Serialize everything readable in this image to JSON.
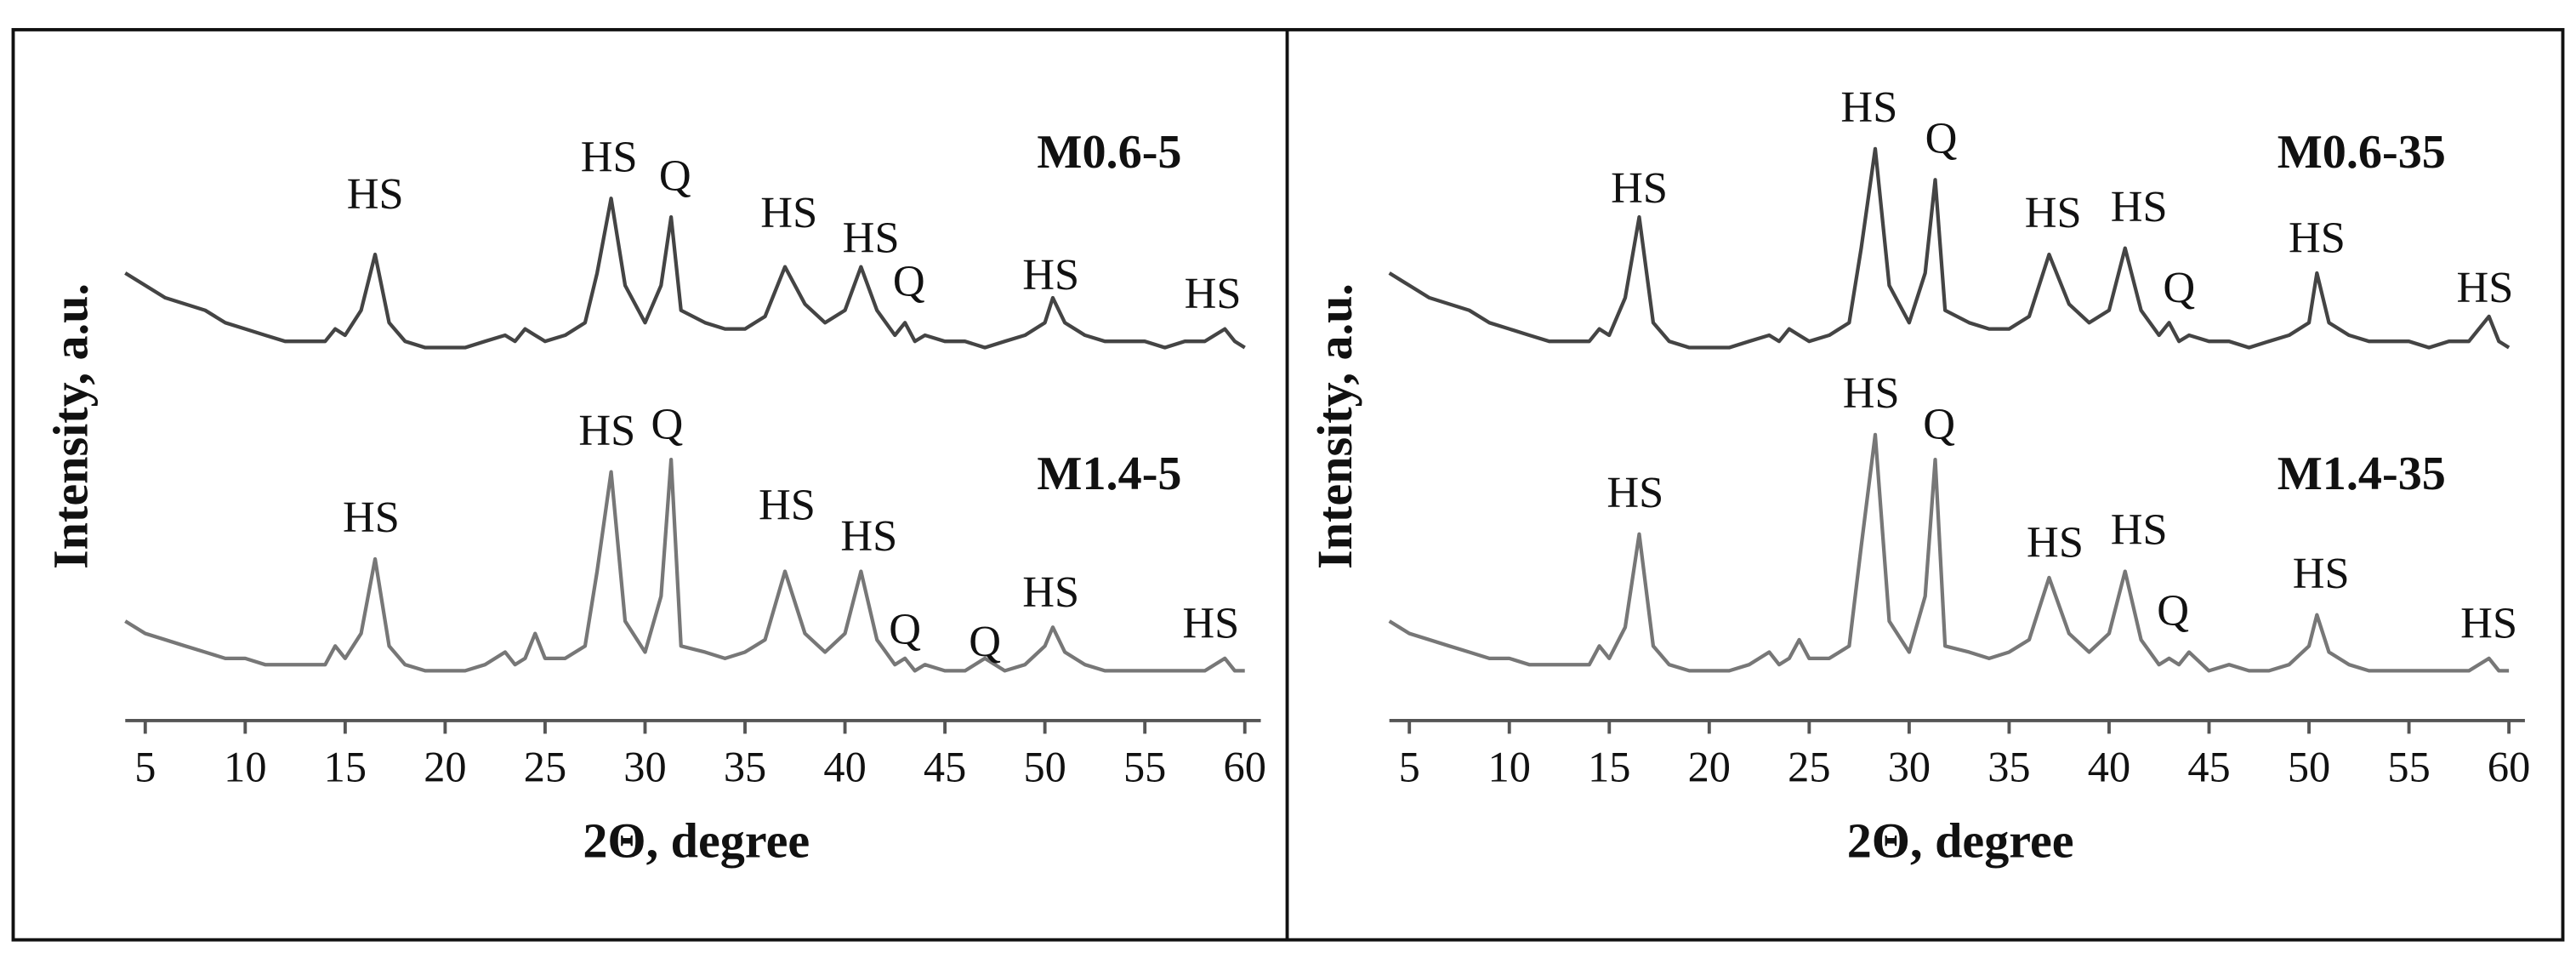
{
  "chart_data": [
    {
      "type": "line",
      "x_label": "2Θ, degree",
      "y_label": "Intensity, a.u.",
      "x": [
        4,
        5,
        6,
        7,
        8,
        9,
        10,
        11,
        12,
        13,
        14,
        14.5,
        15,
        15.8,
        16.5,
        17.2,
        18,
        19,
        20,
        21,
        22,
        23,
        23.5,
        24,
        24.5,
        25,
        26,
        27,
        27.6,
        28.3,
        29,
        30,
        30.8,
        31.3,
        31.8,
        33,
        34,
        35,
        36,
        37,
        38,
        39,
        40,
        40.8,
        41.6,
        42.5,
        43,
        43.5,
        44,
        45,
        46,
        47,
        48,
        49,
        50,
        50.4,
        51,
        52,
        53,
        54,
        55,
        56,
        57,
        58,
        59,
        59.5,
        60
      ],
      "xlim": [
        4,
        60.8
      ],
      "ylim": [
        0,
        100
      ],
      "xticks": [
        5,
        10,
        15,
        20,
        25,
        30,
        35,
        40,
        45,
        50,
        55,
        60
      ],
      "series": [
        {
          "name": "M0.6-5",
          "color": "#444444",
          "values": [
            72,
            70,
            68,
            67,
            66,
            64,
            63,
            62,
            61,
            61,
            61,
            63,
            62,
            66,
            75,
            64,
            61,
            60,
            60,
            60,
            61,
            62,
            61,
            63,
            62,
            61,
            62,
            64,
            72,
            84,
            70,
            64,
            70,
            81,
            66,
            64,
            63,
            63,
            65,
            73,
            67,
            64,
            66,
            73,
            66,
            62,
            64,
            61,
            62,
            61,
            61,
            60,
            61,
            62,
            64,
            68,
            64,
            62,
            61,
            61,
            61,
            60,
            61,
            61,
            63,
            61,
            60
          ]
        },
        {
          "name": "M1.4-5",
          "color": "#777777",
          "values": [
            16,
            14,
            13,
            12,
            11,
            10,
            10,
            9,
            9,
            9,
            9,
            12,
            10,
            14,
            26,
            12,
            9,
            8,
            8,
            8,
            9,
            11,
            9,
            10,
            14,
            10,
            10,
            12,
            24,
            40,
            16,
            11,
            20,
            42,
            12,
            11,
            10,
            11,
            13,
            24,
            14,
            11,
            14,
            24,
            13,
            9,
            10,
            8,
            9,
            8,
            8,
            10,
            8,
            9,
            12,
            15,
            11,
            9,
            8,
            8,
            8,
            8,
            8,
            8,
            10,
            8,
            8
          ]
        }
      ],
      "annotations": [
        {
          "text": "HS",
          "x": 16.5,
          "y": 84
        },
        {
          "text": "HS",
          "x": 28.2,
          "y": 90
        },
        {
          "text": "Q",
          "x": 31.5,
          "y": 87
        },
        {
          "text": "HS",
          "x": 37.2,
          "y": 81
        },
        {
          "text": "HS",
          "x": 41.3,
          "y": 77
        },
        {
          "text": "Q",
          "x": 43.2,
          "y": 70
        },
        {
          "text": "HS",
          "x": 50.3,
          "y": 71
        },
        {
          "text": "HS",
          "x": 58.4,
          "y": 68
        },
        {
          "text": "HS",
          "x": 16.3,
          "y": 32
        },
        {
          "text": "HS",
          "x": 28.1,
          "y": 46
        },
        {
          "text": "Q",
          "x": 31.1,
          "y": 47
        },
        {
          "text": "HS",
          "x": 37.1,
          "y": 34
        },
        {
          "text": "HS",
          "x": 41.2,
          "y": 29
        },
        {
          "text": "Q",
          "x": 43,
          "y": 14
        },
        {
          "text": "Q",
          "x": 47,
          "y": 12
        },
        {
          "text": "HS",
          "x": 50.3,
          "y": 20
        },
        {
          "text": "HS",
          "x": 58.3,
          "y": 15
        }
      ]
    },
    {
      "type": "line",
      "x_label": "2Θ, degree",
      "y_label": "Intensity, a.u.",
      "x": [
        4,
        5,
        6,
        7,
        8,
        9,
        10,
        11,
        12,
        13,
        14,
        14.5,
        15,
        15.8,
        16.5,
        17.2,
        18,
        19,
        20,
        21,
        22,
        23,
        23.5,
        24,
        24.5,
        25,
        26,
        27,
        27.6,
        28.3,
        29,
        30,
        30.8,
        31.3,
        31.8,
        33,
        34,
        35,
        36,
        37,
        38,
        39,
        40,
        40.8,
        41.6,
        42.5,
        43,
        43.5,
        44,
        45,
        46,
        47,
        48,
        49,
        50,
        50.4,
        51,
        52,
        53,
        54,
        55,
        56,
        57,
        58,
        59,
        59.5,
        60
      ],
      "xlim": [
        4,
        60.8
      ],
      "ylim": [
        0,
        100
      ],
      "xticks": [
        5,
        10,
        15,
        20,
        25,
        30,
        35,
        40,
        45,
        50,
        55,
        60
      ],
      "series": [
        {
          "name": "M0.6-35",
          "color": "#444444",
          "values": [
            72,
            70,
            68,
            67,
            66,
            64,
            63,
            62,
            61,
            61,
            61,
            63,
            62,
            68,
            81,
            64,
            61,
            60,
            60,
            60,
            61,
            62,
            61,
            63,
            62,
            61,
            62,
            64,
            76,
            92,
            70,
            64,
            72,
            87,
            66,
            64,
            63,
            63,
            65,
            75,
            67,
            64,
            66,
            76,
            66,
            62,
            64,
            61,
            62,
            61,
            61,
            60,
            61,
            62,
            64,
            72,
            64,
            62,
            61,
            61,
            61,
            60,
            61,
            61,
            65,
            61,
            60
          ]
        },
        {
          "name": "M1.4-35",
          "color": "#777777",
          "values": [
            16,
            14,
            13,
            12,
            11,
            10,
            10,
            9,
            9,
            9,
            9,
            12,
            10,
            15,
            30,
            12,
            9,
            8,
            8,
            8,
            9,
            11,
            9,
            10,
            13,
            10,
            10,
            12,
            28,
            46,
            16,
            11,
            20,
            42,
            12,
            11,
            10,
            11,
            13,
            23,
            14,
            11,
            14,
            24,
            13,
            9,
            10,
            9,
            11,
            8,
            9,
            8,
            8,
            9,
            12,
            17,
            11,
            9,
            8,
            8,
            8,
            8,
            8,
            8,
            10,
            8,
            8
          ]
        }
      ],
      "annotations": [
        {
          "text": "HS",
          "x": 16.5,
          "y": 85
        },
        {
          "text": "HS",
          "x": 28,
          "y": 98
        },
        {
          "text": "Q",
          "x": 31.6,
          "y": 93
        },
        {
          "text": "HS",
          "x": 37.2,
          "y": 81
        },
        {
          "text": "HS",
          "x": 41.5,
          "y": 82
        },
        {
          "text": "Q",
          "x": 43.5,
          "y": 69
        },
        {
          "text": "HS",
          "x": 50.4,
          "y": 77
        },
        {
          "text": "HS",
          "x": 58.8,
          "y": 69
        },
        {
          "text": "HS",
          "x": 16.3,
          "y": 36
        },
        {
          "text": "HS",
          "x": 28.1,
          "y": 52
        },
        {
          "text": "Q",
          "x": 31.5,
          "y": 47
        },
        {
          "text": "HS",
          "x": 37.3,
          "y": 28
        },
        {
          "text": "HS",
          "x": 41.5,
          "y": 30
        },
        {
          "text": "Q",
          "x": 43.2,
          "y": 17
        },
        {
          "text": "HS",
          "x": 50.6,
          "y": 23
        },
        {
          "text": "HS",
          "x": 59,
          "y": 15
        }
      ]
    }
  ]
}
